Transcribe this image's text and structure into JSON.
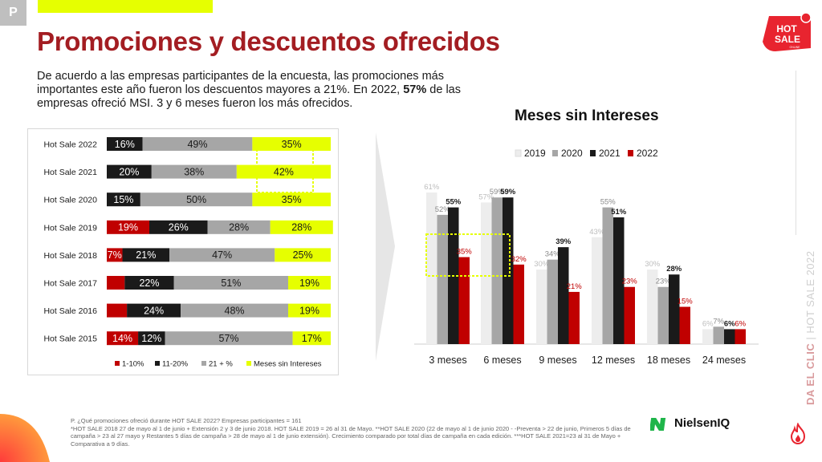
{
  "header": {
    "badge": "P",
    "title": "Promociones y descuentos ofrecidos",
    "intro_part1": "De acuerdo a las empresas participantes de la encuesta, las promociones más importantes este año fueron los descuentos mayores a 21%. En 2022, ",
    "intro_bold": "57%",
    "intro_part2": " de las empresas ofreció MSI. 3 y 6 meses fueron los más ofrecidos."
  },
  "logo": {
    "line1": "HOT",
    "line2": "SALE",
    "line3": "ONLINE"
  },
  "side_label": {
    "part1": "DA EL CLIC",
    "separator": " | ",
    "part2": "HOT SALE 2022"
  },
  "colors": {
    "brand_red": "#a31d22",
    "red": "#c00000",
    "black": "#1a1a1a",
    "gray": "#a6a6a6",
    "light": "#ededed",
    "yellow": "#e6ff00"
  },
  "chart_data": [
    {
      "type": "bar",
      "orientation": "horizontal-stacked-100",
      "categories": [
        "Hot Sale 2022",
        "Hot Sale 2021",
        "Hot Sale 2020",
        "Hot Sale 2019",
        "Hot Sale 2018",
        "Hot Sale 2017",
        "Hot Sale 2016",
        "Hot Sale 2015"
      ],
      "series": [
        {
          "name": "1-10%",
          "color": "#c00000",
          "values": [
            0,
            0,
            0,
            19,
            7,
            8,
            9,
            14
          ],
          "labels": [
            "",
            "",
            "",
            "19%",
            "7%",
            "",
            "",
            "14%"
          ]
        },
        {
          "name": "11-20%",
          "color": "#1a1a1a",
          "values": [
            16,
            20,
            15,
            26,
            21,
            22,
            24,
            12
          ],
          "labels": [
            "16%",
            "20%",
            "15%",
            "26%",
            "21%",
            "22%",
            "24%",
            "12%"
          ]
        },
        {
          "name": "21 + %",
          "color": "#a6a6a6",
          "values": [
            49,
            38,
            50,
            28,
            47,
            51,
            48,
            57
          ],
          "labels": [
            "49%",
            "38%",
            "50%",
            "28%",
            "47%",
            "51%",
            "48%",
            "57%"
          ]
        },
        {
          "name": "Meses sin Intereses",
          "color": "#e6ff00",
          "values": [
            35,
            42,
            35,
            28,
            25,
            19,
            19,
            17
          ],
          "labels": [
            "35%",
            "42%",
            "35%",
            "28%",
            "25%",
            "19%",
            "19%",
            "17%"
          ]
        }
      ],
      "legend": "bottom"
    },
    {
      "type": "bar",
      "title": "Meses sin Intereses",
      "categories": [
        "3 meses",
        "6 meses",
        "9 meses",
        "12 meses",
        "18 meses",
        "24 meses"
      ],
      "series": [
        {
          "name": "2019",
          "color": "#ededed",
          "values": [
            61,
            57,
            30,
            43,
            30,
            6
          ]
        },
        {
          "name": "2020",
          "color": "#a6a6a6",
          "values": [
            52,
            59,
            34,
            55,
            23,
            7
          ]
        },
        {
          "name": "2021",
          "color": "#1a1a1a",
          "values": [
            55,
            59,
            39,
            51,
            28,
            6
          ]
        },
        {
          "name": "2022",
          "color": "#c00000",
          "values": [
            35,
            32,
            21,
            23,
            15,
            6
          ]
        }
      ],
      "ylim": [
        0,
        70
      ],
      "legend": "top"
    }
  ],
  "footnote": "P. ¿Qué promociones ofreció durante HOT SALE 2022? Empresas participantes = 161\n*HOT SALE 2018 27 de mayo al 1 de junio + Extensión 2 y 3 de junio 2018. HOT SALE 2019 = 26 al 31 de Mayo. **HOT SALE 2020 (22  de mayo al 1 de junio 2020 - -Preventa > 22 de junio,  Primeros 5 días de campaña > 23 al 27 mayo y Restantes 5 días de campaña > 28 de mayo al 1 de junio extensión). Crecimiento comparado por total días de campaña en cada edición. ***HOT SALE 2021=23 al 31  de Mayo + Comparativa a 9 días.",
  "brand": {
    "name": "NielsenIQ"
  }
}
